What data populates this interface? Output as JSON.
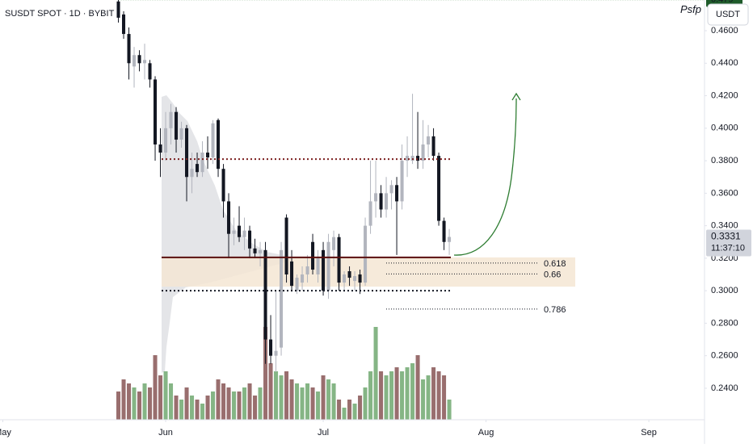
{
  "chart_data": {
    "type": "candlestick",
    "title": "SUSDT SPOT · 1D · BYBIT",
    "currency_button": "USDT",
    "xlim": [
      -0.54,
      133.6
    ],
    "xticks": [
      {
        "value": 0,
        "label": "May"
      },
      {
        "value": 31,
        "label": "Jun"
      },
      {
        "value": 61,
        "label": "Jul"
      },
      {
        "value": 92,
        "label": "Aug"
      },
      {
        "value": 123,
        "label": "Sep"
      }
    ],
    "ylim": [
      0.2206,
      0.4789
    ],
    "yticks": [
      {
        "value": 0.24,
        "label": "0.2400"
      },
      {
        "value": 0.26,
        "label": "0.2600"
      },
      {
        "value": 0.28,
        "label": "0.2800"
      },
      {
        "value": 0.3,
        "label": "0.3000"
      },
      {
        "value": 0.32,
        "label": "0.3200"
      },
      {
        "value": 0.34,
        "label": "0.3400"
      },
      {
        "value": 0.36,
        "label": "0.3600"
      },
      {
        "value": 0.38,
        "label": "0.3800"
      },
      {
        "value": 0.4,
        "label": "0.4000"
      },
      {
        "value": 0.42,
        "label": "0.4200"
      },
      {
        "value": 0.44,
        "label": "0.4400"
      },
      {
        "value": 0.46,
        "label": "0.4600"
      }
    ],
    "grid": false,
    "up_color": "#b2b5be",
    "down_color": "#131722",
    "volume_up_color": "#78ad78",
    "volume_down_color": "#8e5e5e",
    "x": [
      22,
      23,
      24,
      25,
      26,
      27,
      28,
      29,
      30,
      31,
      32,
      33,
      34,
      35,
      36,
      37,
      38,
      39,
      40,
      41,
      42,
      43,
      44,
      45,
      46,
      47,
      48,
      49,
      50,
      51,
      52,
      53,
      54,
      55,
      56,
      57,
      58,
      59,
      60,
      61,
      62,
      63,
      64,
      65,
      66,
      67,
      68,
      69,
      70,
      71,
      72,
      73,
      74,
      75,
      76,
      77,
      78,
      79,
      80,
      81,
      82,
      83,
      84,
      85
    ],
    "open": [
      0.478,
      0.47,
      0.458,
      0.438,
      0.445,
      0.44,
      0.44,
      0.43,
      0.39,
      0.385,
      0.4,
      0.41,
      0.393,
      0.4,
      0.37,
      0.378,
      0.373,
      0.385,
      0.382,
      0.405,
      0.375,
      0.355,
      0.335,
      0.34,
      0.333,
      0.337,
      0.326,
      0.323,
      0.325,
      0.27,
      0.26,
      0.265,
      0.345,
      0.318,
      0.3,
      0.305,
      0.31,
      0.33,
      0.31,
      0.325,
      0.3,
      0.325,
      0.333,
      0.305,
      0.312,
      0.306,
      0.31,
      0.305,
      0.34,
      0.355,
      0.36,
      0.35,
      0.36,
      0.365,
      0.355,
      0.38,
      0.38,
      0.383,
      0.38,
      0.39,
      0.395,
      0.383,
      0.343,
      0.33
    ],
    "high": [
      0.479,
      0.472,
      0.462,
      0.45,
      0.448,
      0.452,
      0.442,
      0.432,
      0.4,
      0.41,
      0.415,
      0.413,
      0.404,
      0.402,
      0.385,
      0.385,
      0.392,
      0.395,
      0.405,
      0.406,
      0.378,
      0.36,
      0.345,
      0.352,
      0.345,
      0.34,
      0.332,
      0.33,
      0.33,
      0.285,
      0.3,
      0.33,
      0.347,
      0.325,
      0.31,
      0.315,
      0.322,
      0.335,
      0.325,
      0.33,
      0.335,
      0.337,
      0.335,
      0.312,
      0.315,
      0.312,
      0.313,
      0.345,
      0.38,
      0.38,
      0.365,
      0.37,
      0.368,
      0.37,
      0.39,
      0.395,
      0.4212,
      0.41,
      0.405,
      0.402,
      0.4,
      0.385,
      0.345,
      0.338
    ],
    "low": [
      0.465,
      0.455,
      0.43,
      0.425,
      0.435,
      0.43,
      0.425,
      0.38,
      0.37,
      0.38,
      0.39,
      0.385,
      0.388,
      0.355,
      0.36,
      0.37,
      0.37,
      0.375,
      0.378,
      0.37,
      0.345,
      0.32,
      0.328,
      0.33,
      0.325,
      0.32,
      0.32,
      0.315,
      0.255,
      0.255,
      0.25,
      0.26,
      0.305,
      0.3,
      0.298,
      0.3,
      0.305,
      0.31,
      0.305,
      0.297,
      0.295,
      0.315,
      0.3,
      0.3,
      0.303,
      0.3,
      0.298,
      0.303,
      0.335,
      0.345,
      0.345,
      0.345,
      0.35,
      0.322,
      0.35,
      0.37,
      0.378,
      0.375,
      0.375,
      0.382,
      0.38,
      0.34,
      0.325,
      0.322
    ],
    "close": [
      0.468,
      0.458,
      0.44,
      0.445,
      0.44,
      0.442,
      0.43,
      0.39,
      0.385,
      0.4,
      0.41,
      0.393,
      0.4,
      0.37,
      0.375,
      0.373,
      0.385,
      0.382,
      0.403,
      0.375,
      0.355,
      0.335,
      0.337,
      0.333,
      0.337,
      0.326,
      0.323,
      0.325,
      0.27,
      0.26,
      0.263,
      0.325,
      0.31,
      0.303,
      0.308,
      0.31,
      0.315,
      0.313,
      0.32,
      0.3,
      0.33,
      0.333,
      0.305,
      0.31,
      0.308,
      0.309,
      0.305,
      0.34,
      0.355,
      0.36,
      0.35,
      0.36,
      0.365,
      0.355,
      0.38,
      0.383,
      0.383,
      0.38,
      0.39,
      0.395,
      0.383,
      0.343,
      0.33,
      0.3331
    ],
    "volume": [
      35,
      50,
      45,
      40,
      35,
      45,
      40,
      80,
      55,
      60,
      45,
      30,
      25,
      40,
      30,
      25,
      20,
      30,
      35,
      50,
      45,
      40,
      35,
      35,
      40,
      45,
      30,
      40,
      115,
      70,
      60,
      55,
      60,
      50,
      45,
      40,
      45,
      40,
      35,
      55,
      50,
      45,
      25,
      15,
      25,
      20,
      30,
      40,
      60,
      115,
      60,
      55,
      60,
      65,
      60,
      65,
      70,
      80,
      50,
      55,
      65,
      60,
      55,
      25
    ],
    "countdown": "11:37:10",
    "levels": {
      "range_high": 0.381,
      "support": 0.3205,
      "range_low": 0.3,
      "zone": [
        0.3205,
        0.3025
      ]
    },
    "fib_levels": [
      {
        "label": "0.618",
        "value": 0.317
      },
      {
        "label": "0.66",
        "value": 0.3103
      },
      {
        "label": "0.786",
        "value": 0.2887
      }
    ],
    "target_label": "Psfp"
  }
}
